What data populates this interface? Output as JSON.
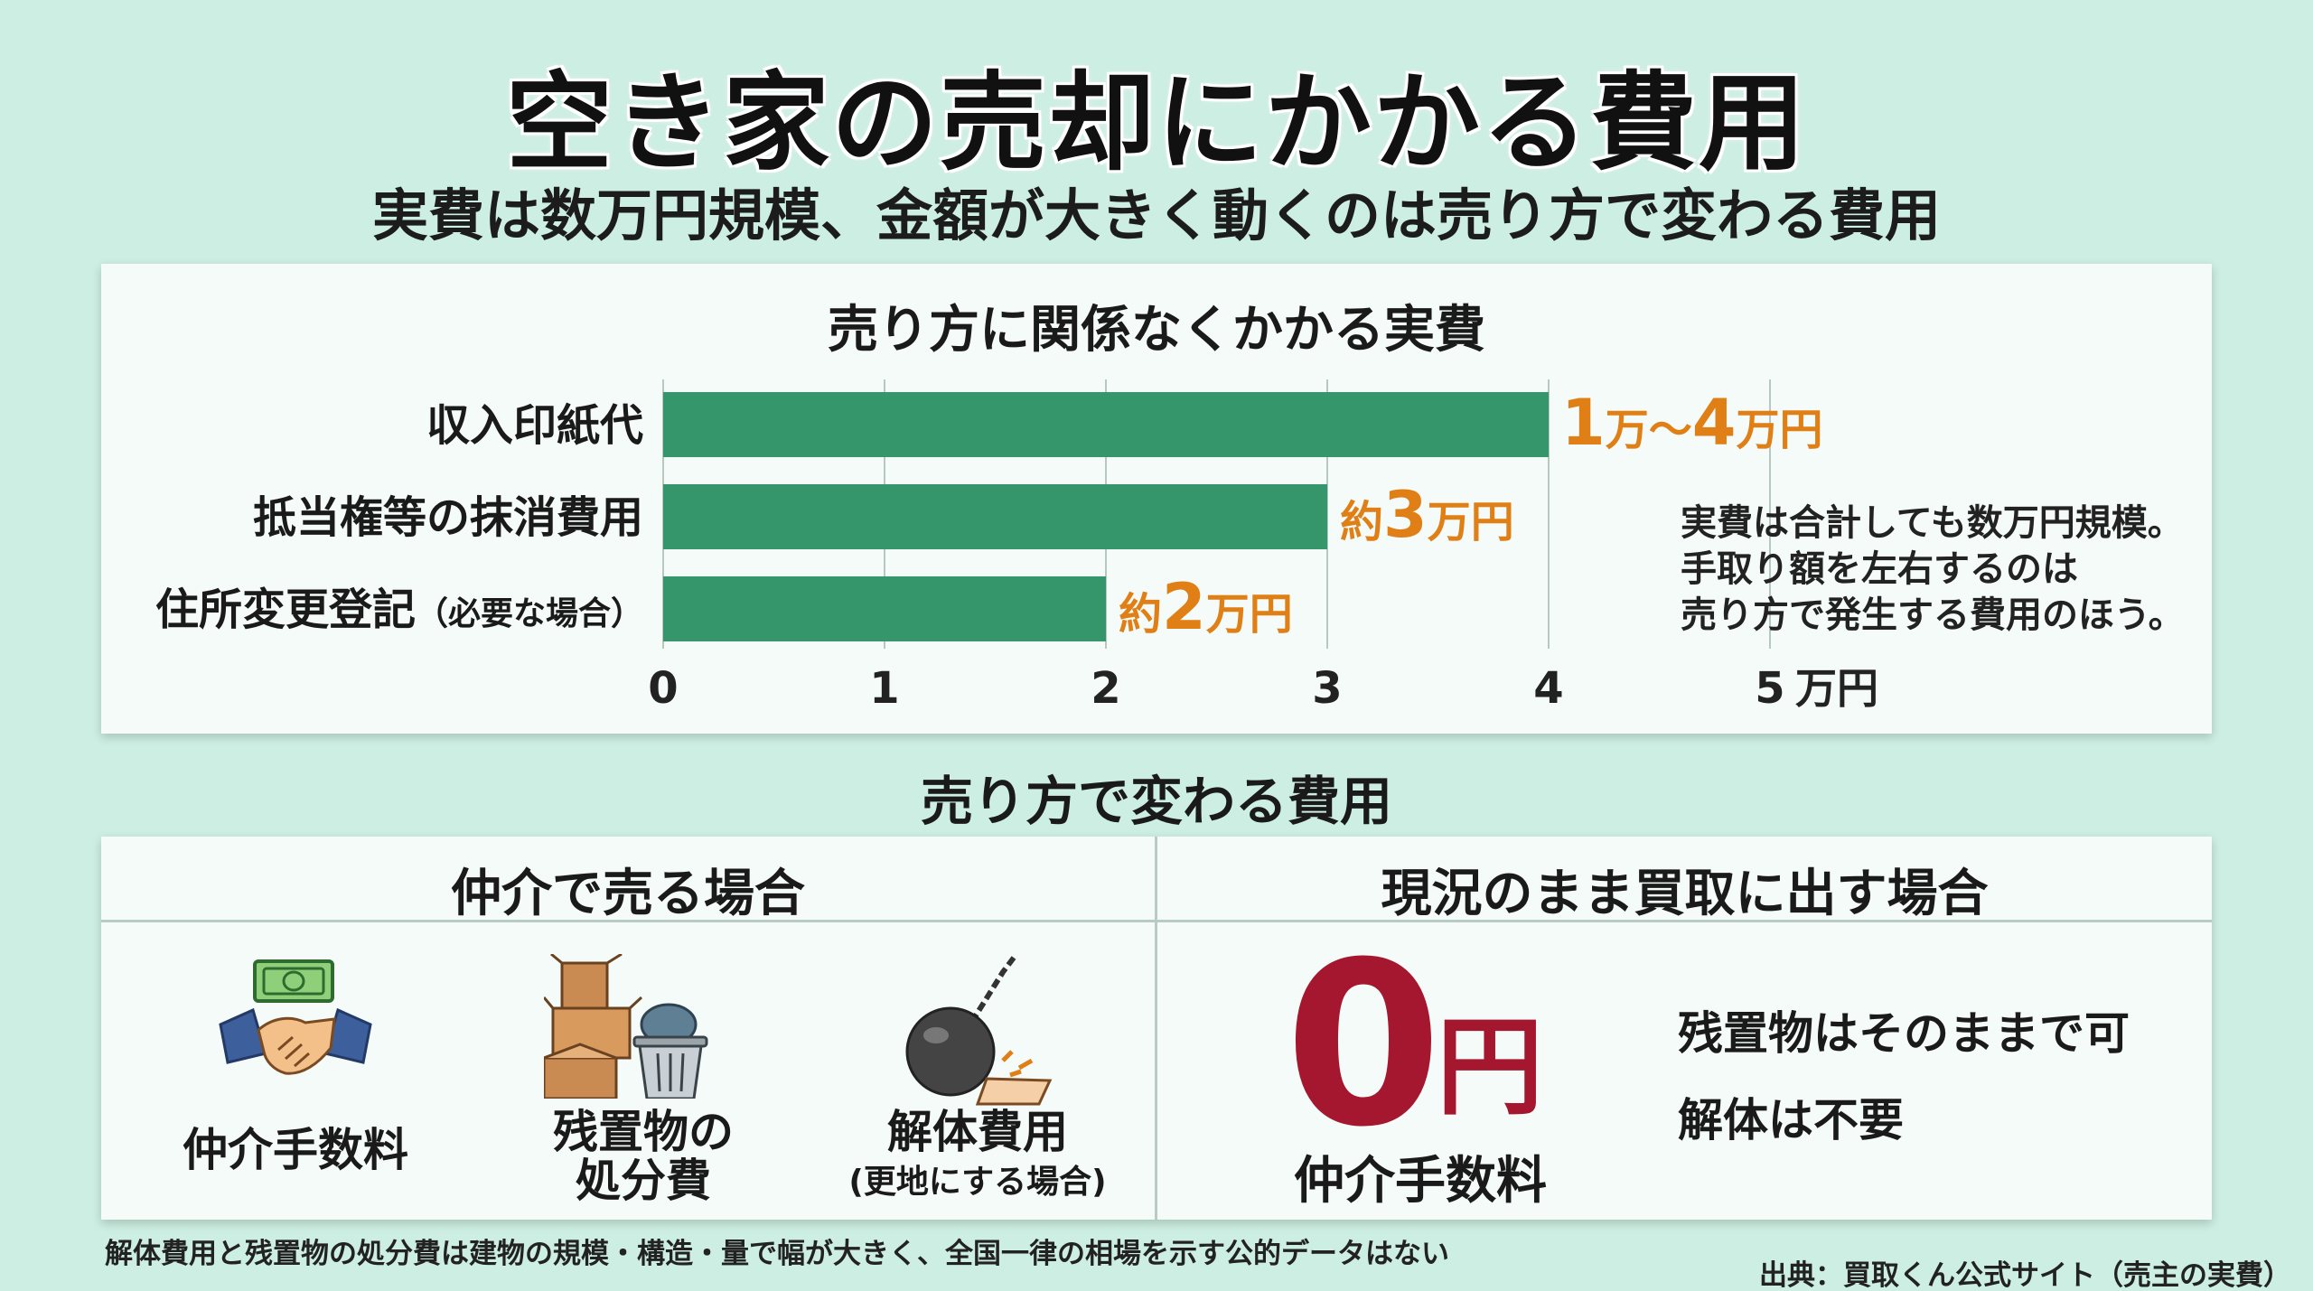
{
  "title": "空き家の売却にかかる費用",
  "subtitle": "実費は数万円規模、金額が大きく動くのは売り方で変わる費用",
  "chart_data": {
    "type": "bar",
    "orientation": "horizontal",
    "title": "売り方に関係なくかかる実費",
    "categories": [
      "収入印紙代",
      "抵当権等の抹消費用",
      "住所変更登記"
    ],
    "category_notes": [
      "",
      "",
      "（必要な場合）"
    ],
    "values": [
      4,
      3,
      2
    ],
    "value_labels": [
      {
        "prefix": "",
        "num": "1",
        "mid": "万～",
        "num2": "4",
        "suffix": "万円"
      },
      {
        "prefix": "約",
        "num": "3",
        "mid": "",
        "num2": "",
        "suffix": "万円"
      },
      {
        "prefix": "約",
        "num": "2",
        "mid": "",
        "num2": "",
        "suffix": "万円"
      }
    ],
    "xlim": [
      0,
      5
    ],
    "xticks": [
      0,
      1,
      2,
      3,
      4,
      5
    ],
    "xunit": "万円",
    "grid": true,
    "colors": {
      "bar": "#35966b",
      "label": "#e07f16"
    }
  },
  "side_note": [
    "実費は合計しても数万円規模。",
    "手取り額を左右するのは",
    "売り方で発生する費用のほう。"
  ],
  "section2_title": "売り方で変わる費用",
  "brokerage": {
    "heading": "仲介で売る場合",
    "items": [
      {
        "icon": "handshake-money-icon",
        "label": "仲介手数料",
        "sub": ""
      },
      {
        "icon": "boxes-trash-icon",
        "label": "残置物の",
        "label2": "処分費",
        "sub": ""
      },
      {
        "icon": "wrecking-ball-icon",
        "label": "解体費用",
        "sub": "(更地にする場合)"
      }
    ]
  },
  "buyout": {
    "heading": "現況のまま買取に出す場合",
    "zero": "0",
    "zero_unit": "円",
    "zero_label": "仲介手数料",
    "notes": [
      "残置物はそのままで可",
      "解体は不要"
    ]
  },
  "footnote": "解体費用と残置物の処分費は建物の規模・構造・量で幅が大きく、全国一律の相場を示す公的データはない",
  "source": "出典：買取くん公式サイト（売主の実費）",
  "colors": {
    "background": "#cdeee2",
    "bar": "#35966b",
    "accent_orange": "#e07f16",
    "accent_red": "#a5172e"
  }
}
